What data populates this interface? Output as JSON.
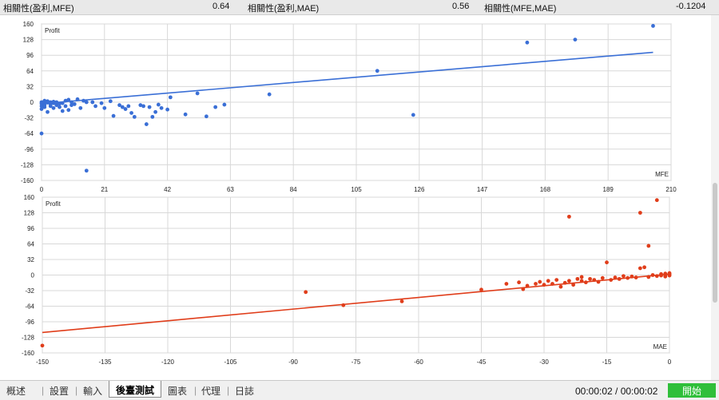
{
  "correlations": [
    {
      "label": "相關性(盈利,MFE)",
      "value": "0.64"
    },
    {
      "label": "相關性(盈利,MAE)",
      "value": "0.56"
    },
    {
      "label": "相關性(MFE,MAE)",
      "value": "-0.1204"
    }
  ],
  "chart_data": [
    {
      "type": "scatter",
      "ylabel": "Profit",
      "xlabel": "MFE",
      "xlim": [
        0,
        210
      ],
      "ylim": [
        -160,
        160
      ],
      "x_ticks": [
        0,
        21,
        42,
        63,
        84,
        105,
        126,
        147,
        168,
        189,
        210
      ],
      "y_ticks": [
        160,
        128,
        96,
        64,
        32,
        0,
        -32,
        -64,
        -96,
        -128,
        -160
      ],
      "color": "#3a6fd6",
      "trendline": {
        "x": [
          0,
          204
        ],
        "y": [
          -3,
          102
        ]
      },
      "points": [
        [
          0,
          -64
        ],
        [
          0,
          -14
        ],
        [
          0,
          -8
        ],
        [
          0,
          -3
        ],
        [
          0,
          0
        ],
        [
          1,
          -10
        ],
        [
          1,
          -2
        ],
        [
          1,
          3
        ],
        [
          1,
          -6
        ],
        [
          2,
          -20
        ],
        [
          2,
          -1
        ],
        [
          2,
          2
        ],
        [
          3,
          -8
        ],
        [
          3,
          -4
        ],
        [
          3,
          0
        ],
        [
          4,
          -12
        ],
        [
          4,
          -2
        ],
        [
          4,
          1
        ],
        [
          5,
          -6
        ],
        [
          5,
          0
        ],
        [
          6,
          -3
        ],
        [
          6,
          -10
        ],
        [
          7,
          -18
        ],
        [
          7,
          -2
        ],
        [
          8,
          3
        ],
        [
          8,
          -8
        ],
        [
          9,
          -16
        ],
        [
          9,
          5
        ],
        [
          10,
          -6
        ],
        [
          10,
          0
        ],
        [
          11,
          -4
        ],
        [
          12,
          6
        ],
        [
          13,
          -12
        ],
        [
          14,
          3
        ],
        [
          15,
          0
        ],
        [
          15,
          -140
        ],
        [
          17,
          0
        ],
        [
          18,
          -8
        ],
        [
          20,
          -2
        ],
        [
          21,
          -12
        ],
        [
          23,
          2
        ],
        [
          24,
          -28
        ],
        [
          26,
          -6
        ],
        [
          27,
          -10
        ],
        [
          28,
          -14
        ],
        [
          29,
          -8
        ],
        [
          30,
          -22
        ],
        [
          31,
          -30
        ],
        [
          33,
          -6
        ],
        [
          34,
          -8
        ],
        [
          35,
          -45
        ],
        [
          36,
          -10
        ],
        [
          37,
          -30
        ],
        [
          38,
          -20
        ],
        [
          39,
          -5
        ],
        [
          40,
          -12
        ],
        [
          42,
          -15
        ],
        [
          43,
          10
        ],
        [
          48,
          -25
        ],
        [
          52,
          18
        ],
        [
          55,
          -29
        ],
        [
          58,
          -10
        ],
        [
          61,
          -5
        ],
        [
          76,
          16
        ],
        [
          112,
          64
        ],
        [
          124,
          -26
        ],
        [
          162,
          122
        ],
        [
          178,
          128
        ],
        [
          204,
          156
        ]
      ]
    },
    {
      "type": "scatter",
      "ylabel": "Profit",
      "xlabel": "MAE",
      "xlim": [
        -150,
        0
      ],
      "ylim": [
        -160,
        160
      ],
      "x_ticks": [
        -150,
        -135,
        -120,
        -105,
        -90,
        -75,
        -60,
        -45,
        -30,
        -15,
        0
      ],
      "y_ticks": [
        160,
        128,
        96,
        64,
        32,
        0,
        -32,
        -64,
        -96,
        -128,
        -160
      ],
      "color": "#e03d1a",
      "trendline": {
        "x": [
          -150,
          0
        ],
        "y": [
          -118,
          2
        ]
      },
      "points": [
        [
          -150,
          -145
        ],
        [
          -87,
          -35
        ],
        [
          -78,
          -62
        ],
        [
          -64,
          -54
        ],
        [
          -45,
          -30
        ],
        [
          -39,
          -18
        ],
        [
          -36,
          -15
        ],
        [
          -35,
          -29
        ],
        [
          -34,
          -22
        ],
        [
          -32,
          -18
        ],
        [
          -31,
          -14
        ],
        [
          -30,
          -20
        ],
        [
          -29,
          -12
        ],
        [
          -28,
          -18
        ],
        [
          -27,
          -10
        ],
        [
          -26,
          -24
        ],
        [
          -25,
          -16
        ],
        [
          -24,
          -12
        ],
        [
          -24,
          120
        ],
        [
          -23,
          -20
        ],
        [
          -22,
          -8
        ],
        [
          -21,
          -4
        ],
        [
          -21,
          -12
        ],
        [
          -20,
          -15
        ],
        [
          -19,
          -8
        ],
        [
          -18,
          -10
        ],
        [
          -17,
          -14
        ],
        [
          -16,
          -6
        ],
        [
          -15,
          26
        ],
        [
          -14,
          -10
        ],
        [
          -13,
          -5
        ],
        [
          -12,
          -8
        ],
        [
          -11,
          -2
        ],
        [
          -10,
          -6
        ],
        [
          -9,
          -3
        ],
        [
          -8,
          -5
        ],
        [
          -7,
          14
        ],
        [
          -7,
          128
        ],
        [
          -6,
          16
        ],
        [
          -5,
          -4
        ],
        [
          -5,
          60
        ],
        [
          -4,
          0
        ],
        [
          -3,
          -2
        ],
        [
          -3,
          154
        ],
        [
          -2,
          2
        ],
        [
          -2,
          -1
        ],
        [
          -1,
          0
        ],
        [
          -1,
          3
        ],
        [
          -1,
          -3
        ],
        [
          0,
          1
        ],
        [
          0,
          -1
        ],
        [
          0,
          2
        ],
        [
          0,
          4
        ]
      ]
    }
  ],
  "tabs": [
    {
      "label": "概述",
      "active": false
    },
    {
      "label": "設置",
      "active": false
    },
    {
      "label": "輸入",
      "active": false
    },
    {
      "label": "後臺測試",
      "active": true
    },
    {
      "label": "圖表",
      "active": false
    },
    {
      "label": "代理",
      "active": false
    },
    {
      "label": "日誌",
      "active": false
    }
  ],
  "status": {
    "timer": "00:00:02 / 00:00:02",
    "start_button": "開始"
  },
  "colors": {
    "grid": "#d8d8d8",
    "axis_text": "#222222",
    "start_button": "#2fbf3a"
  }
}
